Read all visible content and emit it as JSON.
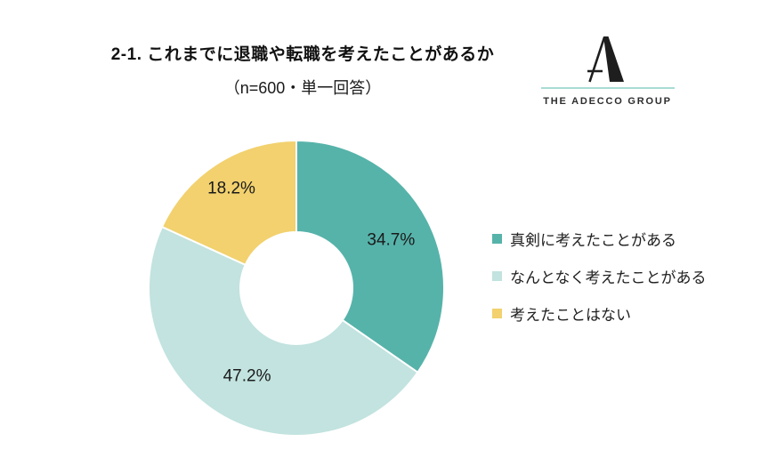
{
  "header": {
    "title": "2-1. これまでに退職や転職を考えたことがあるか",
    "subtitle": "（n=600・単一回答）"
  },
  "logo": {
    "brand": "THE ADECCO GROUP",
    "mark_color": "#1e1e1e",
    "accent_color": "#a9dcd4",
    "text_color": "#2d2d2d"
  },
  "chart_data": {
    "type": "pie",
    "donut": true,
    "title": "2-1. これまでに退職や転職を考えたことがあるか",
    "sample_note": "（n=600・単一回答）",
    "start_angle_deg": 0,
    "direction": "clockwise",
    "categories": [
      "真剣に考えたことがある",
      "なんとなく考えたことがある",
      "考えたことはない"
    ],
    "values": [
      34.7,
      47.2,
      18.2
    ],
    "labels": [
      "34.7%",
      "47.2%",
      "18.2%"
    ],
    "colors": [
      "#56b3aa",
      "#c2e3df",
      "#f2d16e"
    ],
    "legend_position": "right",
    "slice_border_color": "#ffffff"
  }
}
